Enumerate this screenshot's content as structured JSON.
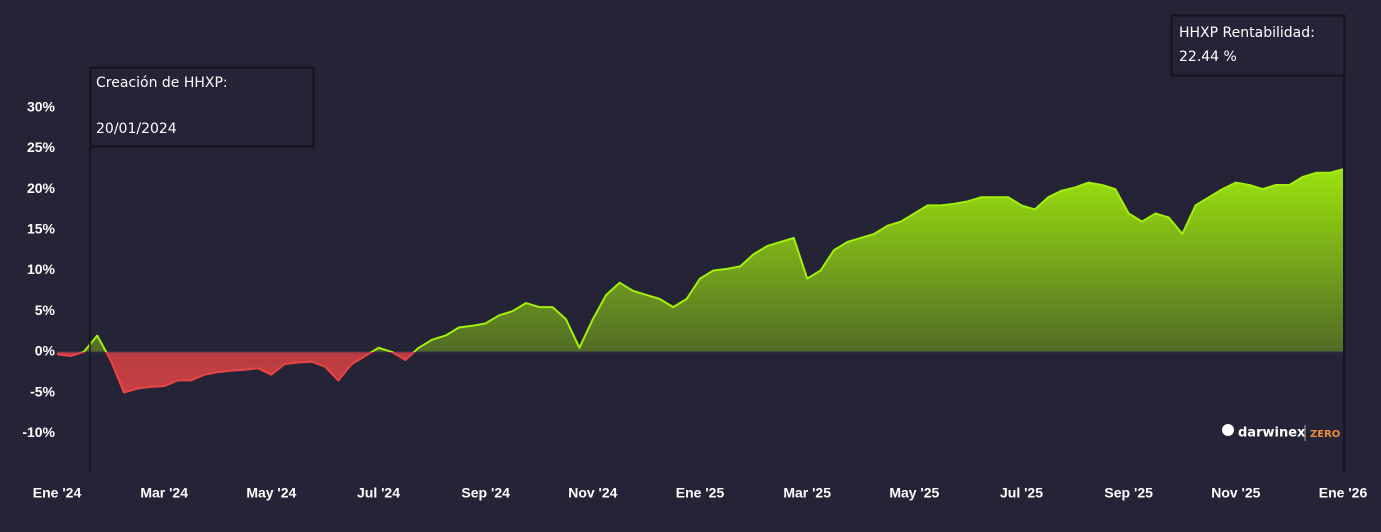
{
  "chart_data": {
    "type": "area",
    "categories": [
      "Ene '24",
      null,
      null,
      null,
      null,
      null,
      null,
      null,
      "Mar '24",
      null,
      null,
      null,
      null,
      null,
      null,
      null,
      "May '24",
      null,
      null,
      null,
      null,
      null,
      null,
      null,
      "Jul '24",
      null,
      null,
      null,
      null,
      null,
      null,
      null,
      "Sep '24",
      null,
      null,
      null,
      null,
      null,
      null,
      null,
      "Nov '24",
      null,
      null,
      null,
      null,
      null,
      null,
      null,
      "Ene '25",
      null,
      null,
      null,
      null,
      null,
      null,
      null,
      "Mar '25",
      null,
      null,
      null,
      null,
      null,
      null,
      null,
      "May '25",
      null,
      null,
      null,
      null,
      null,
      null,
      null,
      "Jul '25",
      null,
      null,
      null,
      null,
      null,
      null,
      null,
      "Sep '25",
      null,
      null,
      null,
      null,
      null,
      null,
      null,
      "Nov '25",
      null,
      null,
      null,
      null,
      null,
      null,
      null,
      "Ene '26"
    ],
    "values": [
      -0.3,
      -0.5,
      0,
      2,
      -1,
      -5,
      -4.5,
      -4.3,
      -4.2,
      -3.5,
      -3.5,
      -2.8,
      -2.5,
      -2.3,
      -2.2,
      -2,
      -2.8,
      -1.5,
      -1.3,
      -1.2,
      -1.8,
      -3.5,
      -1.5,
      -0.5,
      0.5,
      0,
      -1,
      0.5,
      1.5,
      2,
      3,
      3.2,
      3.5,
      4.5,
      5,
      6,
      5.5,
      5.5,
      4,
      0.5,
      4,
      7,
      8.5,
      7.5,
      7,
      6.5,
      5.5,
      6.5,
      9,
      10,
      10.2,
      10.5,
      12,
      13,
      13.5,
      14,
      9,
      10,
      12.5,
      13.5,
      14,
      14.5,
      15.5,
      16,
      17,
      18,
      18,
      18.2,
      18.5,
      19,
      19,
      19,
      18,
      17.5,
      19,
      19.8,
      20.2,
      20.8,
      20.5,
      20,
      17,
      16,
      17,
      16.5,
      14.5,
      18,
      19,
      20,
      20.8,
      20.5,
      20,
      20.5,
      20.5,
      21.5,
      22,
      22,
      22.44
    ],
    "color": "#a3f00a",
    "negative_color": "#e84545",
    "ylim": [
      -15,
      42
    ],
    "yticks": [
      {
        "value": -10,
        "label": "-10%"
      },
      {
        "value": -5,
        "label": "-5%"
      },
      {
        "value": 0,
        "label": "0%"
      },
      {
        "value": 5,
        "label": "5%"
      },
      {
        "value": 10,
        "label": "10%"
      },
      {
        "value": 15,
        "label": "15%"
      },
      {
        "value": 20,
        "label": "20%"
      },
      {
        "value": 25,
        "label": "25%"
      },
      {
        "value": 30,
        "label": "30%"
      }
    ],
    "annotations": [
      {
        "title": "Creación de HHXP:",
        "text": "20/01/2024"
      },
      {
        "title": "HHXP Rentabilidad:",
        "text": "22.44 %"
      }
    ],
    "brand": {
      "name": "darwinex",
      "tag": "ZERO"
    }
  }
}
